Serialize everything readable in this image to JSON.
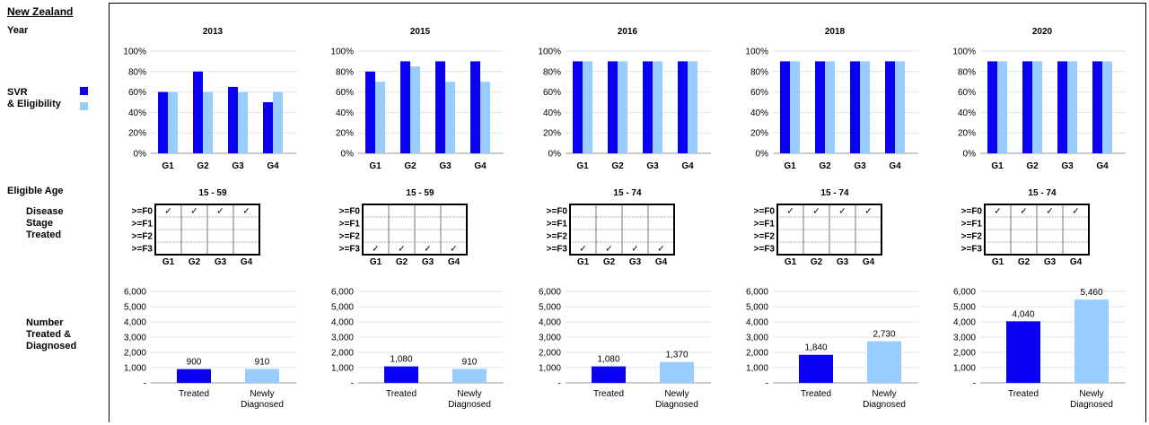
{
  "page_title": "New  Zealand",
  "row_labels": {
    "year": "Year",
    "svr": "SVR",
    "eligibility": "& Eligibility",
    "eligible_age": "Eligible Age",
    "disease_stage": "Disease\nStage\nTreated",
    "number": "Number\nTreated &\nDiagnosed"
  },
  "colors": {
    "svr": "#0a00f2",
    "eligibility": "#99ccff"
  },
  "stage_rows": [
    ">=F0",
    ">=F1",
    ">=F2",
    ">=F3"
  ],
  "genotypes": [
    "G1",
    "G2",
    "G3",
    "G4"
  ],
  "check_mark": "✓",
  "chart_data": [
    {
      "year": "2013",
      "age": "15 - 59",
      "svr_chart": {
        "type": "bar",
        "categories": [
          "G1",
          "G2",
          "G3",
          "G4"
        ],
        "ylim": [
          0,
          100
        ],
        "yticks": [
          "0%",
          "20%",
          "40%",
          "60%",
          "80%",
          "100%"
        ],
        "series": [
          {
            "name": "SVR",
            "values": [
              60,
              80,
              65,
              50
            ]
          },
          {
            "name": "& Eligibility",
            "values": [
              60,
              60,
              60,
              60
            ]
          }
        ]
      },
      "stage_checked": ">=F0",
      "number_chart": {
        "type": "bar",
        "categories": [
          "Treated",
          "Newly Diagnosed"
        ],
        "values": [
          900,
          910
        ],
        "labels": [
          "900",
          "910"
        ],
        "ylim": [
          0,
          6000
        ],
        "yticks": [
          "-",
          "1,000",
          "2,000",
          "3,000",
          "4,000",
          "5,000",
          "6,000"
        ]
      }
    },
    {
      "year": "2015",
      "age": "15 - 59",
      "svr_chart": {
        "type": "bar",
        "categories": [
          "G1",
          "G2",
          "G3",
          "G4"
        ],
        "ylim": [
          0,
          100
        ],
        "yticks": [
          "0%",
          "20%",
          "40%",
          "60%",
          "80%",
          "100%"
        ],
        "series": [
          {
            "name": "SVR",
            "values": [
              80,
              90,
              90,
              90
            ]
          },
          {
            "name": "& Eligibility",
            "values": [
              70,
              85,
              70,
              70
            ]
          }
        ]
      },
      "stage_checked": ">=F3",
      "number_chart": {
        "type": "bar",
        "categories": [
          "Treated",
          "Newly Diagnosed"
        ],
        "values": [
          1080,
          910
        ],
        "labels": [
          "1,080",
          "910"
        ],
        "ylim": [
          0,
          6000
        ],
        "yticks": [
          "-",
          "1,000",
          "2,000",
          "3,000",
          "4,000",
          "5,000",
          "6,000"
        ]
      }
    },
    {
      "year": "2016",
      "age": "15 - 74",
      "svr_chart": {
        "type": "bar",
        "categories": [
          "G1",
          "G2",
          "G3",
          "G4"
        ],
        "ylim": [
          0,
          100
        ],
        "yticks": [
          "0%",
          "20%",
          "40%",
          "60%",
          "80%",
          "100%"
        ],
        "series": [
          {
            "name": "SVR",
            "values": [
              90,
              90,
              90,
              90
            ]
          },
          {
            "name": "& Eligibility",
            "values": [
              90,
              90,
              90,
              90
            ]
          }
        ]
      },
      "stage_checked": ">=F3",
      "number_chart": {
        "type": "bar",
        "categories": [
          "Treated",
          "Newly Diagnosed"
        ],
        "values": [
          1080,
          1370
        ],
        "labels": [
          "1,080",
          "1,370"
        ],
        "ylim": [
          0,
          6000
        ],
        "yticks": [
          "-",
          "1,000",
          "2,000",
          "3,000",
          "4,000",
          "5,000",
          "6,000"
        ]
      }
    },
    {
      "year": "2018",
      "age": "15 - 74",
      "svr_chart": {
        "type": "bar",
        "categories": [
          "G1",
          "G2",
          "G3",
          "G4"
        ],
        "ylim": [
          0,
          100
        ],
        "yticks": [
          "0%",
          "20%",
          "40%",
          "60%",
          "80%",
          "100%"
        ],
        "series": [
          {
            "name": "SVR",
            "values": [
              90,
              90,
              90,
              90
            ]
          },
          {
            "name": "& Eligibility",
            "values": [
              90,
              90,
              90,
              90
            ]
          }
        ]
      },
      "stage_checked": ">=F0",
      "number_chart": {
        "type": "bar",
        "categories": [
          "Treated",
          "Newly Diagnosed"
        ],
        "values": [
          1840,
          2730
        ],
        "labels": [
          "1,840",
          "2,730"
        ],
        "ylim": [
          0,
          6000
        ],
        "yticks": [
          "-",
          "1,000",
          "2,000",
          "3,000",
          "4,000",
          "5,000",
          "6,000"
        ]
      }
    },
    {
      "year": "2020",
      "age": "15 - 74",
      "svr_chart": {
        "type": "bar",
        "categories": [
          "G1",
          "G2",
          "G3",
          "G4"
        ],
        "ylim": [
          0,
          100
        ],
        "yticks": [
          "0%",
          "20%",
          "40%",
          "60%",
          "80%",
          "100%"
        ],
        "series": [
          {
            "name": "SVR",
            "values": [
              90,
              90,
              90,
              90
            ]
          },
          {
            "name": "& Eligibility",
            "values": [
              90,
              90,
              90,
              90
            ]
          }
        ]
      },
      "stage_checked": ">=F0",
      "number_chart": {
        "type": "bar",
        "categories": [
          "Treated",
          "Newly Diagnosed"
        ],
        "values": [
          4040,
          5460
        ],
        "labels": [
          "4,040",
          "5,460"
        ],
        "ylim": [
          0,
          6000
        ],
        "yticks": [
          "-",
          "1,000",
          "2,000",
          "3,000",
          "4,000",
          "5,000",
          "6,000"
        ]
      }
    }
  ]
}
